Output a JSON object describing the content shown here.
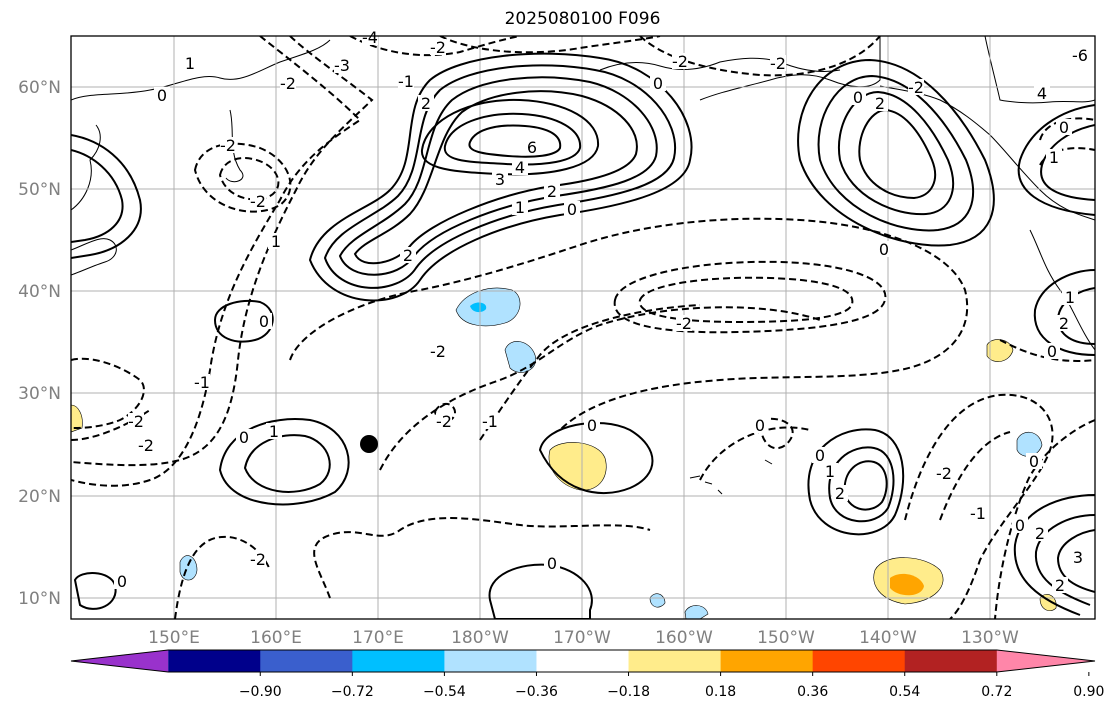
{
  "title": "2025080100 F096",
  "map": {
    "lat_labels": [
      "60°N",
      "50°N",
      "40°N",
      "30°N",
      "20°N",
      "10°N"
    ],
    "lon_labels": [
      "150°E",
      "160°E",
      "170°E",
      "180°W",
      "170°W",
      "160°W",
      "150°W",
      "140°W",
      "130°W"
    ],
    "grid": true,
    "marker": {
      "lon": 171,
      "lat": 25
    }
  },
  "contour_labels": [
    "-4",
    "-3",
    "-2",
    "-1",
    "0",
    "1",
    "2",
    "3",
    "4",
    "6",
    "-6"
  ],
  "colorbar": {
    "levels": [
      "−0.90",
      "−0.72",
      "−0.54",
      "−0.36",
      "−0.18",
      "0.18",
      "0.36",
      "0.54",
      "0.72",
      "0.90"
    ],
    "colors": [
      "#9932cc",
      "#00008b",
      "#3a5fcd",
      "#00bfff",
      "#b0e2ff",
      "#ffffff",
      "#ffec8b",
      "#ffa500",
      "#ff4500",
      "#b22222",
      "#ff86a9"
    ],
    "extend": "both"
  }
}
